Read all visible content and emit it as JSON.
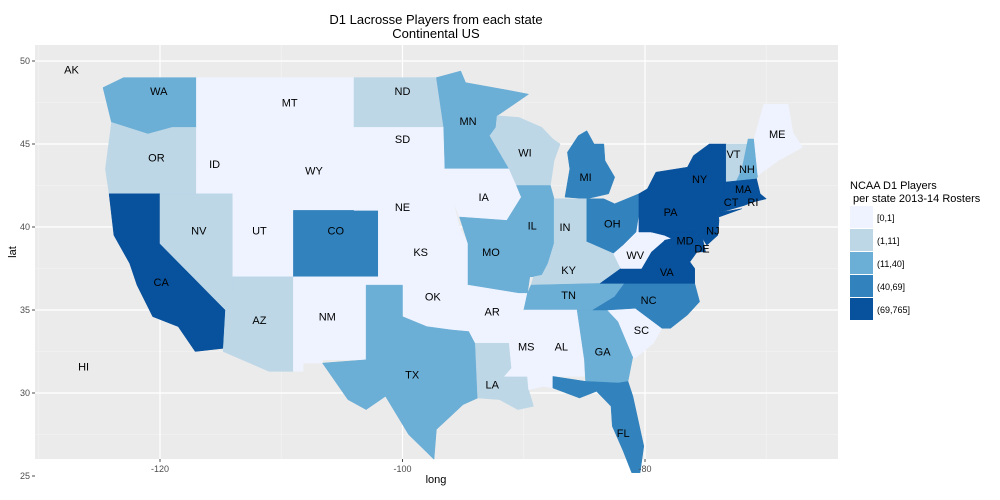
{
  "chart_data": {
    "type": "choropleth",
    "title": "D1 Lacrosse Players from each state",
    "subtitle": "Continental US",
    "xlabel": "long",
    "ylabel": "lat",
    "x_ticks": [
      -120,
      -100,
      -80
    ],
    "y_ticks": [
      25,
      30,
      35,
      40,
      45,
      50
    ],
    "xlim": [
      -130,
      -64
    ],
    "ylim": [
      24,
      51
    ],
    "legend": {
      "title_line1": "NCAA D1 Players",
      "title_line2": " per state 2013-14 Rosters",
      "bins": [
        "[0,1]",
        "(1,11]",
        "(11,40]",
        "(40,69]",
        "(69,765]"
      ],
      "colors": [
        "#eff3ff",
        "#bdd7e7",
        "#6baed6",
        "#3182bd",
        "#08519c"
      ]
    },
    "states": [
      {
        "abbr": "WA",
        "bin": 2
      },
      {
        "abbr": "OR",
        "bin": 1
      },
      {
        "abbr": "CA",
        "bin": 4
      },
      {
        "abbr": "ID",
        "bin": 0
      },
      {
        "abbr": "NV",
        "bin": 1
      },
      {
        "abbr": "MT",
        "bin": 0
      },
      {
        "abbr": "WY",
        "bin": 0
      },
      {
        "abbr": "UT",
        "bin": 0
      },
      {
        "abbr": "AZ",
        "bin": 1
      },
      {
        "abbr": "CO",
        "bin": 3
      },
      {
        "abbr": "NM",
        "bin": 0
      },
      {
        "abbr": "ND",
        "bin": 1
      },
      {
        "abbr": "SD",
        "bin": 0
      },
      {
        "abbr": "NE",
        "bin": 0
      },
      {
        "abbr": "KS",
        "bin": 0
      },
      {
        "abbr": "OK",
        "bin": 0
      },
      {
        "abbr": "TX",
        "bin": 2
      },
      {
        "abbr": "MN",
        "bin": 2
      },
      {
        "abbr": "IA",
        "bin": 0
      },
      {
        "abbr": "MO",
        "bin": 2
      },
      {
        "abbr": "AR",
        "bin": 0
      },
      {
        "abbr": "LA",
        "bin": 1
      },
      {
        "abbr": "WI",
        "bin": 1
      },
      {
        "abbr": "IL",
        "bin": 2
      },
      {
        "abbr": "MI",
        "bin": 3
      },
      {
        "abbr": "IN",
        "bin": 1
      },
      {
        "abbr": "OH",
        "bin": 3
      },
      {
        "abbr": "KY",
        "bin": 1
      },
      {
        "abbr": "TN",
        "bin": 2
      },
      {
        "abbr": "MS",
        "bin": 0
      },
      {
        "abbr": "AL",
        "bin": 0
      },
      {
        "abbr": "GA",
        "bin": 2
      },
      {
        "abbr": "FL",
        "bin": 3
      },
      {
        "abbr": "SC",
        "bin": 0
      },
      {
        "abbr": "NC",
        "bin": 3
      },
      {
        "abbr": "VA",
        "bin": 4
      },
      {
        "abbr": "WV",
        "bin": 0
      },
      {
        "abbr": "MD",
        "bin": 4
      },
      {
        "abbr": "DE",
        "bin": 4
      },
      {
        "abbr": "PA",
        "bin": 4
      },
      {
        "abbr": "NJ",
        "bin": 4
      },
      {
        "abbr": "NY",
        "bin": 4
      },
      {
        "abbr": "CT",
        "bin": 4
      },
      {
        "abbr": "RI",
        "bin": 4
      },
      {
        "abbr": "MA",
        "bin": 4
      },
      {
        "abbr": "VT",
        "bin": 1
      },
      {
        "abbr": "NH",
        "bin": 2
      },
      {
        "abbr": "ME",
        "bin": 0
      },
      {
        "abbr": "AK",
        "bin": null
      },
      {
        "abbr": "HI",
        "bin": null
      }
    ]
  }
}
